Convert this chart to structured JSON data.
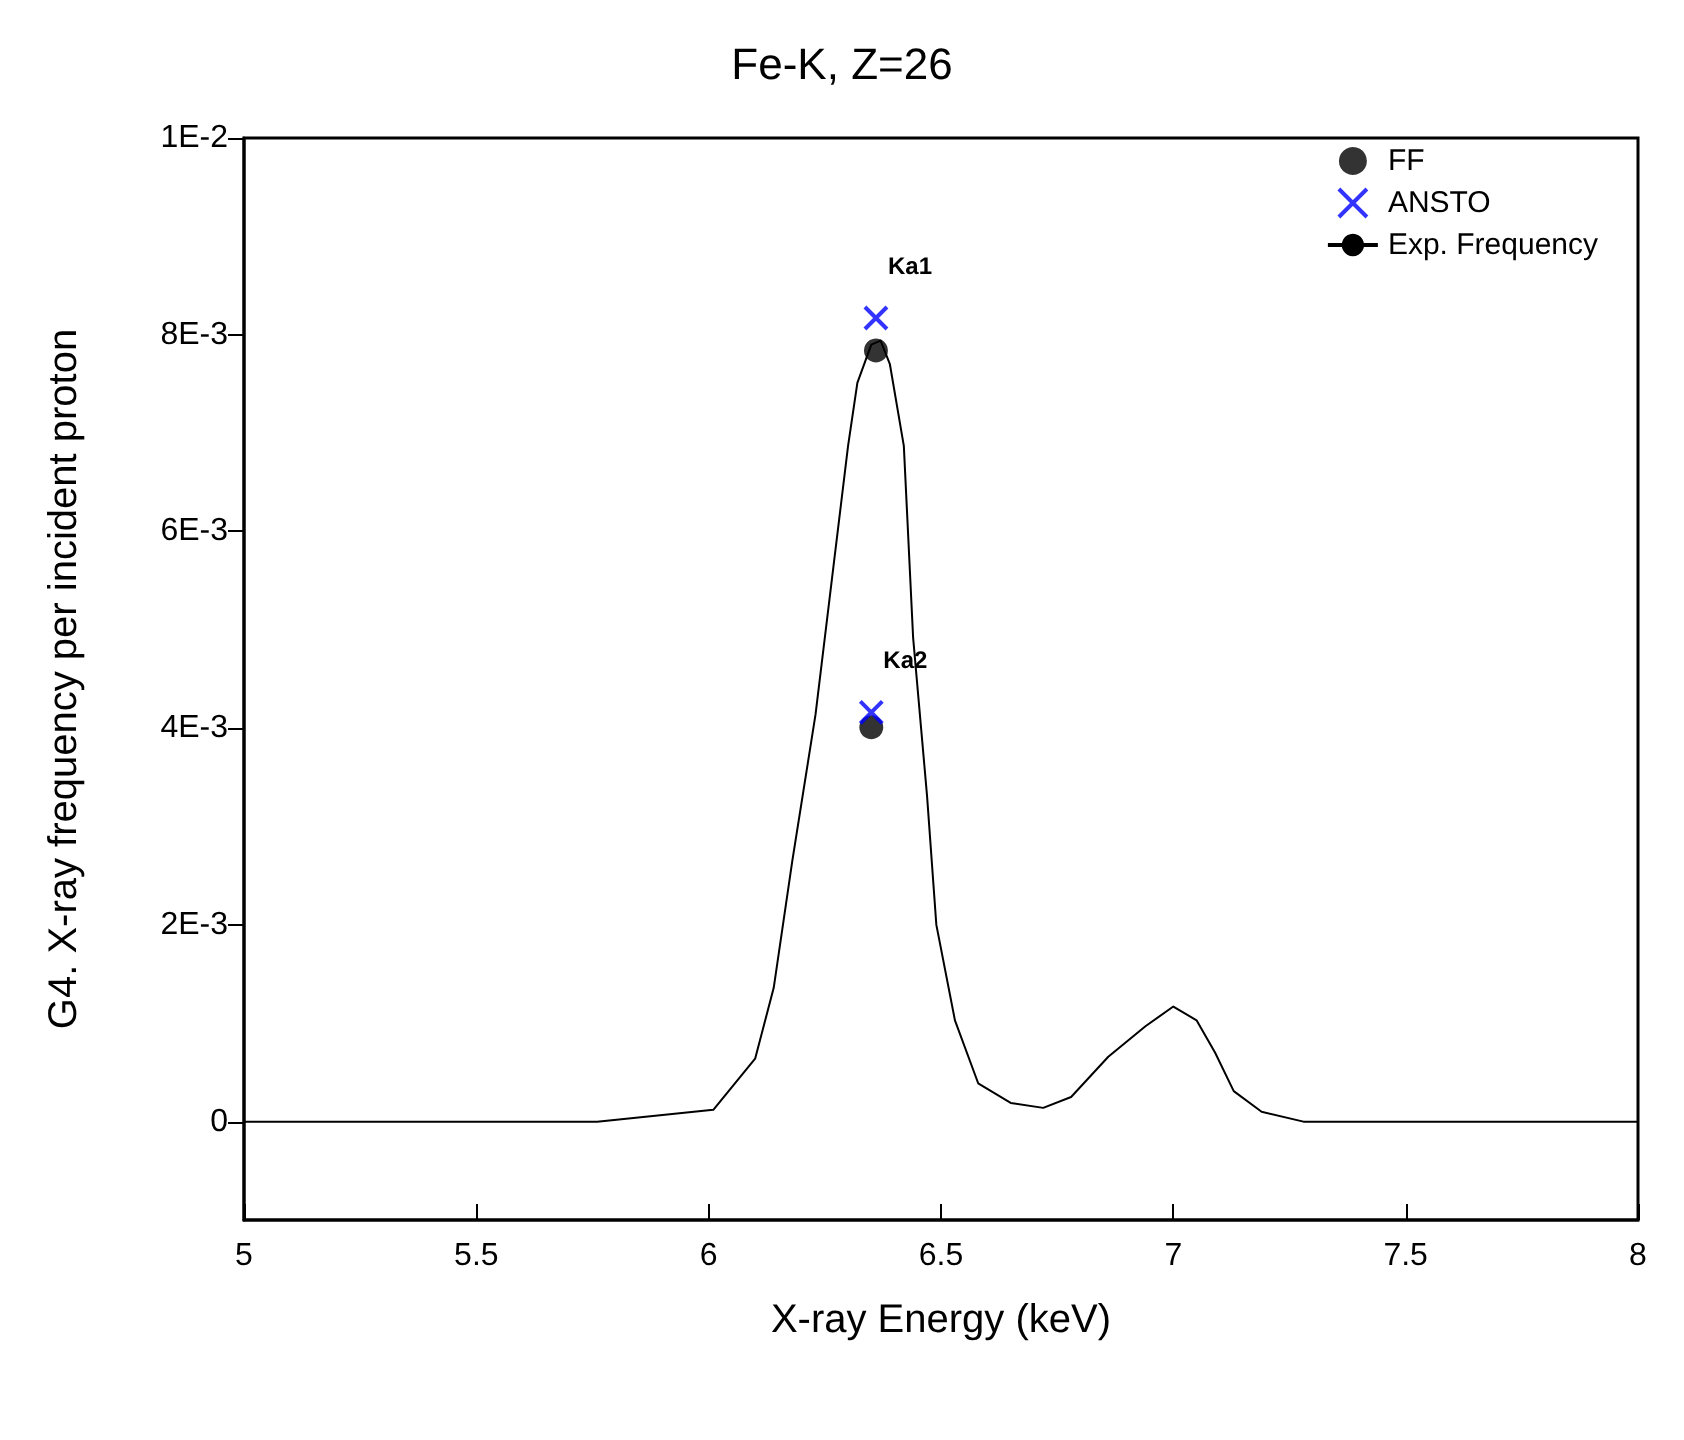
{
  "chart_data": {
    "type": "line",
    "title": "Fe-K, Z=26",
    "xlabel": "X-ray Energy (keV)",
    "ylabel": "G4. X-ray frequency per incident proton",
    "xlim": [
      5,
      8
    ],
    "xticks": [
      5,
      5.5,
      6,
      6.5,
      7,
      7.5,
      8
    ],
    "ylim": [
      -0.001,
      0.01
    ],
    "yticks": [
      {
        "value": 0,
        "label": "0"
      },
      {
        "value": 0.002,
        "label": "2E-3"
      },
      {
        "value": 0.004,
        "label": "4E-3"
      },
      {
        "value": 0.006,
        "label": "6E-3"
      },
      {
        "value": 0.008,
        "label": "8E-3"
      },
      {
        "value": 0.01,
        "label": "1E-2"
      }
    ],
    "grid": false,
    "legend": "top right",
    "series": [
      {
        "name": "FF",
        "type": "scatter",
        "marker": "circle",
        "color": "#000000",
        "x": [
          6.36,
          6.35
        ],
        "values": [
          0.00784,
          0.00401
        ]
      },
      {
        "name": "ANSTO",
        "type": "scatter",
        "marker": "cross",
        "color": "#0000ff",
        "x": [
          6.36,
          6.35
        ],
        "values": [
          0.00817,
          0.00416
        ]
      },
      {
        "name": "Exp. Frequency",
        "marker": "none",
        "color": "#000000",
        "x": [
          5,
          5.5,
          5.76,
          6.01,
          6.1,
          6.14,
          6.18,
          6.23,
          6.27,
          6.3,
          6.32,
          6.35,
          6.37,
          6.39,
          6.42,
          6.44,
          6.47,
          6.49,
          6.53,
          6.58,
          6.65,
          6.72,
          6.78,
          6.86,
          6.94,
          7.0,
          7.05,
          7.09,
          7.13,
          7.19,
          7.28,
          7.5,
          8
        ],
        "values": [
          0,
          0,
          0,
          0.00012,
          0.00064,
          0.00136,
          0.00265,
          0.00414,
          0.0057,
          0.00687,
          0.00751,
          0.0079,
          0.00794,
          0.0077,
          0.00687,
          0.00492,
          0.00331,
          0.002,
          0.00103,
          0.00039,
          0.00019,
          0.00014,
          0.00025,
          0.00066,
          0.00097,
          0.00117,
          0.00103,
          0.0007,
          0.00031,
          0.0001,
          0,
          0,
          0
        ]
      }
    ],
    "annotations": [
      {
        "text": "Ka1",
        "x": 6.36,
        "y": 0.00817
      },
      {
        "text": "Ka2",
        "x": 6.35,
        "y": 0.00416
      }
    ]
  }
}
